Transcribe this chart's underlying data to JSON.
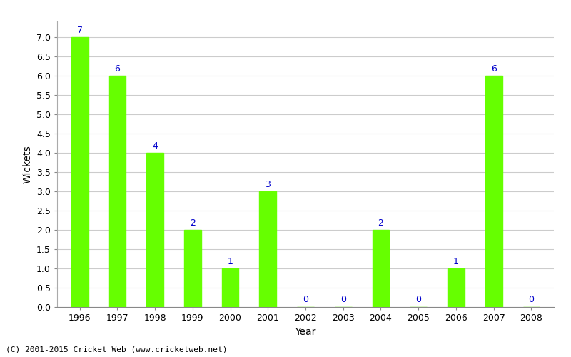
{
  "years": [
    1996,
    1997,
    1998,
    1999,
    2000,
    2001,
    2002,
    2003,
    2004,
    2005,
    2006,
    2007,
    2008
  ],
  "wickets": [
    7,
    6,
    4,
    2,
    1,
    3,
    0,
    0,
    2,
    0,
    1,
    6,
    0
  ],
  "bar_color": "#66ff00",
  "label_color": "#0000cc",
  "xlabel": "Year",
  "ylabel": "Wickets",
  "ylim": [
    0,
    7.4
  ],
  "yticks": [
    0.0,
    0.5,
    1.0,
    1.5,
    2.0,
    2.5,
    3.0,
    3.5,
    4.0,
    4.5,
    5.0,
    5.5,
    6.0,
    6.5,
    7.0
  ],
  "footer": "(C) 2001-2015 Cricket Web (www.cricketweb.net)",
  "background_color": "#ffffff",
  "grid_color": "#cccccc",
  "bar_width": 0.45
}
